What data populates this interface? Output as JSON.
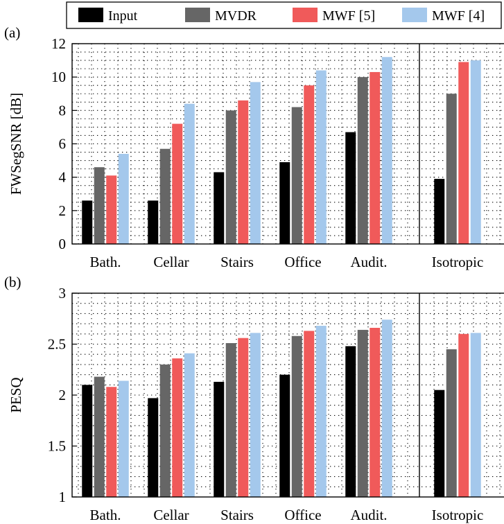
{
  "colors": {
    "Input": "#000000",
    "MVDR": "#666666",
    "MWF [5]": "#f05a5a",
    "MWF [4]": "#a4c8ec",
    "grid": "#000000",
    "axis": "#000000"
  },
  "legend": {
    "placement": "top",
    "entries": [
      "Input",
      "MVDR",
      "MWF [5]",
      "MWF [4]"
    ]
  },
  "chart_data": [
    {
      "type": "bar",
      "panel_label": "(a)",
      "ylabel": "FWSegSNR [dB]",
      "xlabel": "",
      "ylim": [
        0,
        12
      ],
      "yticks": [
        0,
        2,
        4,
        6,
        8,
        10,
        12
      ],
      "ytick_labels": [
        "0",
        "2",
        "4",
        "6",
        "8",
        "10",
        "12"
      ],
      "grid": true,
      "categories": [
        "Bath.",
        "Cellar",
        "Stairs",
        "Office",
        "Audit.",
        "Isotropic"
      ],
      "series": [
        {
          "name": "Input",
          "values": [
            2.6,
            2.6,
            4.3,
            4.9,
            6.7,
            3.9
          ]
        },
        {
          "name": "MVDR",
          "values": [
            4.6,
            5.7,
            8.0,
            8.2,
            10.0,
            9.0
          ]
        },
        {
          "name": "MWF [5]",
          "values": [
            4.1,
            7.2,
            8.6,
            9.5,
            10.3,
            10.9
          ]
        },
        {
          "name": "MWF [4]",
          "values": [
            5.4,
            8.4,
            9.7,
            10.4,
            11.2,
            11.0
          ]
        }
      ]
    },
    {
      "type": "bar",
      "panel_label": "(b)",
      "ylabel": "PESQ",
      "xlabel": "",
      "ylim": [
        1,
        3
      ],
      "yticks": [
        1,
        1.5,
        2,
        2.5,
        3
      ],
      "ytick_labels": [
        "1",
        "1.5",
        "2",
        "2.5",
        "3"
      ],
      "grid": true,
      "categories": [
        "Bath.",
        "Cellar",
        "Stairs",
        "Office",
        "Audit.",
        "Isotropic"
      ],
      "series": [
        {
          "name": "Input",
          "values": [
            2.1,
            1.97,
            2.13,
            2.2,
            2.48,
            2.05
          ]
        },
        {
          "name": "MVDR",
          "values": [
            2.18,
            2.3,
            2.51,
            2.58,
            2.64,
            2.45
          ]
        },
        {
          "name": "MWF [5]",
          "values": [
            2.08,
            2.36,
            2.56,
            2.63,
            2.66,
            2.6
          ]
        },
        {
          "name": "MWF [4]",
          "values": [
            2.14,
            2.41,
            2.61,
            2.68,
            2.74,
            2.61
          ]
        }
      ]
    }
  ]
}
